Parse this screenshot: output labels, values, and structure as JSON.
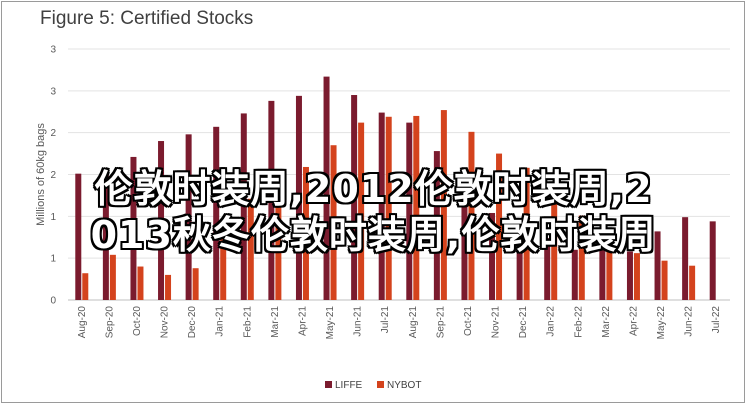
{
  "overlay": {
    "line1": "伦敦时装周,2012伦敦时装周,2",
    "line2": "013秋冬伦敦时装周,伦敦时装周"
  },
  "chart_data": {
    "type": "bar",
    "title": "Figure 5: Certified Stocks",
    "ylabel": "Millions of 60kg bags",
    "ylim": [
      0,
      3
    ],
    "yticks": [
      "0",
      "1",
      "1",
      "2",
      "2",
      "3",
      "3"
    ],
    "ytick_values": [
      0,
      0.5,
      1,
      1.5,
      2,
      2.5,
      3
    ],
    "grid": true,
    "legend_position": "bottom",
    "categories": [
      "Aug-20",
      "Sep-20",
      "Oct-20",
      "Nov-20",
      "Dec-20",
      "Jan-21",
      "Feb-21",
      "Mar-21",
      "Apr-21",
      "May-21",
      "Jun-21",
      "Jul-21",
      "Aug-21",
      "Sep-21",
      "Oct-21",
      "Nov-21",
      "Dec-21",
      "Jan-22",
      "Feb-22",
      "Mar-22",
      "Apr-22",
      "May-22",
      "Jun-22",
      "Jul-22"
    ],
    "series": [
      {
        "name": "LIFFE",
        "color": "#7b1b2e",
        "values": [
          1.51,
          1.51,
          1.71,
          1.9,
          1.98,
          2.07,
          2.23,
          2.38,
          2.44,
          2.67,
          2.45,
          2.24,
          2.12,
          1.78,
          1.3,
          1.04,
          0.78,
          0.74,
          0.6,
          0.66,
          0.58,
          0.82,
          0.99,
          0.94
        ]
      },
      {
        "name": "NYBOT",
        "color": "#d4431d",
        "values": [
          0.32,
          0.54,
          0.4,
          0.3,
          0.38,
          0.8,
          1.21,
          1.37,
          1.59,
          1.85,
          2.12,
          2.19,
          2.2,
          2.27,
          2.01,
          1.75,
          1.58,
          1.35,
          1.01,
          0.82,
          0.56,
          0.47,
          0.41,
          0.0
        ]
      }
    ]
  }
}
